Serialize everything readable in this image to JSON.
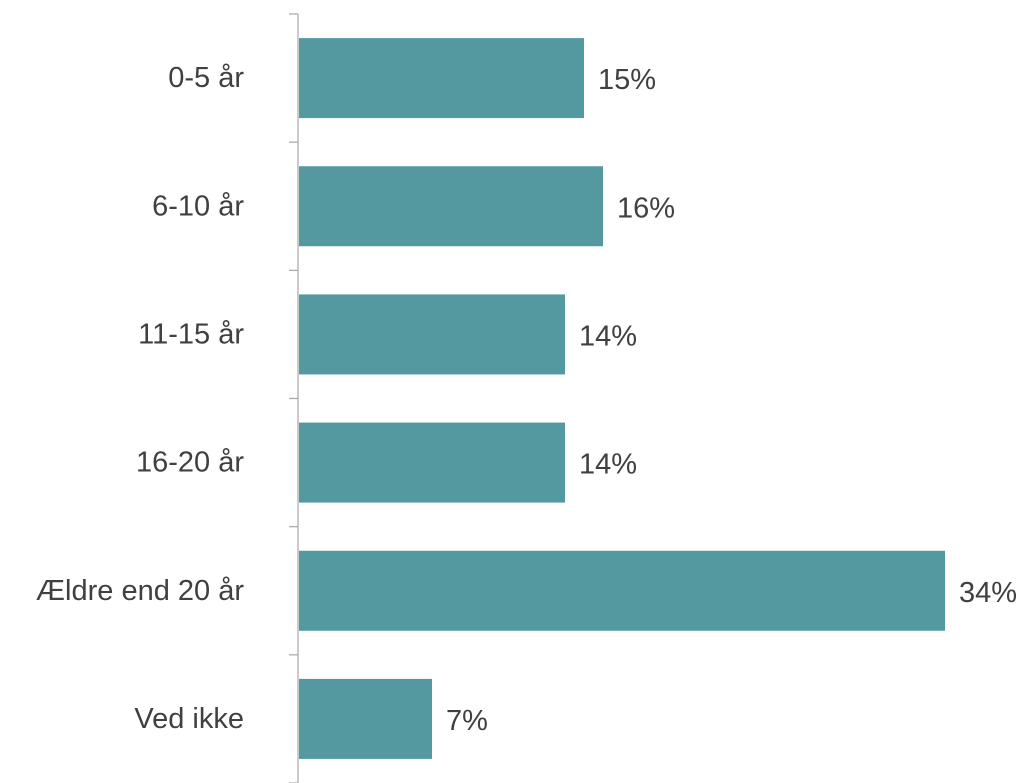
{
  "chart_data": {
    "type": "bar",
    "orientation": "horizontal",
    "categories": [
      "0-5 år",
      "6-10 år",
      "11-15 år",
      "16-20 år",
      "Ældre end 20 år",
      "Ved ikke"
    ],
    "values": [
      15,
      16,
      14,
      14,
      34,
      7
    ],
    "value_labels": [
      "15%",
      "16%",
      "14%",
      "14%",
      "34%",
      "7%"
    ],
    "xlim": [
      0,
      35
    ],
    "grid": false,
    "legend": "none",
    "bar_color": "#5499A0",
    "axis_color": "#A6A6A6",
    "text_color": "#404040"
  }
}
